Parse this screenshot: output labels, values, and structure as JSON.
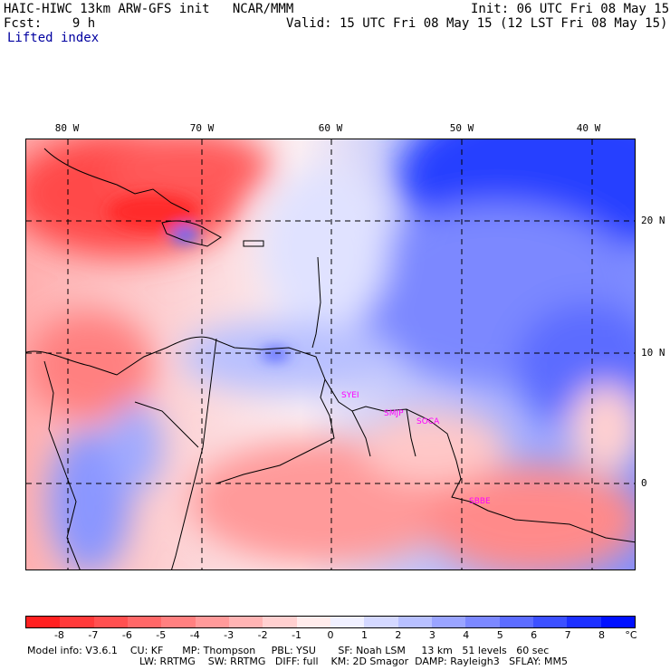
{
  "header": {
    "model": "HAIC-HIWC 13km ARW-GFS init   NCAR/MMM",
    "init": "Init: 06 UTC Fri 08 May 15",
    "fcst": "Fcst:    9 h",
    "valid": "Valid: 15 UTC Fri 08 May 15 (12 LST Fri 08 May 15)",
    "field": "Lifted index"
  },
  "lon_labels": [
    "80 W",
    "70 W",
    "60 W",
    "50 W",
    "40 W"
  ],
  "lat_labels": [
    "20 N",
    "10 N",
    "0"
  ],
  "stations": [
    "SYEI",
    "SMJP",
    "SOCA",
    "SBBE"
  ],
  "colorbar": {
    "ticks": [
      "-8",
      "-7",
      "-6",
      "-5",
      "-4",
      "-3",
      "-2",
      "-1",
      "0",
      "1",
      "2",
      "3",
      "4",
      "5",
      "6",
      "7",
      "8"
    ],
    "unit": "°C",
    "colors": [
      "#ff2020",
      "#ff3a3a",
      "#ff5050",
      "#ff6868",
      "#ff8080",
      "#ff9a9a",
      "#ffb4b4",
      "#ffd0d0",
      "#ffecec",
      "#f0f0ff",
      "#d4d8ff",
      "#b8c0ff",
      "#9aa4ff",
      "#7c88ff",
      "#5c6cff",
      "#3c50ff",
      "#1c30ff",
      "#0010ff"
    ]
  },
  "footer": {
    "line1": "Model info: V3.6.1    CU: KF      MP: Thompson     PBL: YSU       SF: Noah LSM     13 km   51 levels   60 sec",
    "line2": "LW: RRTMG    SW: RRTMG   DIFF: full    KM: 2D Smagor  DAMP: Rayleigh3   SFLAY: MM5"
  }
}
